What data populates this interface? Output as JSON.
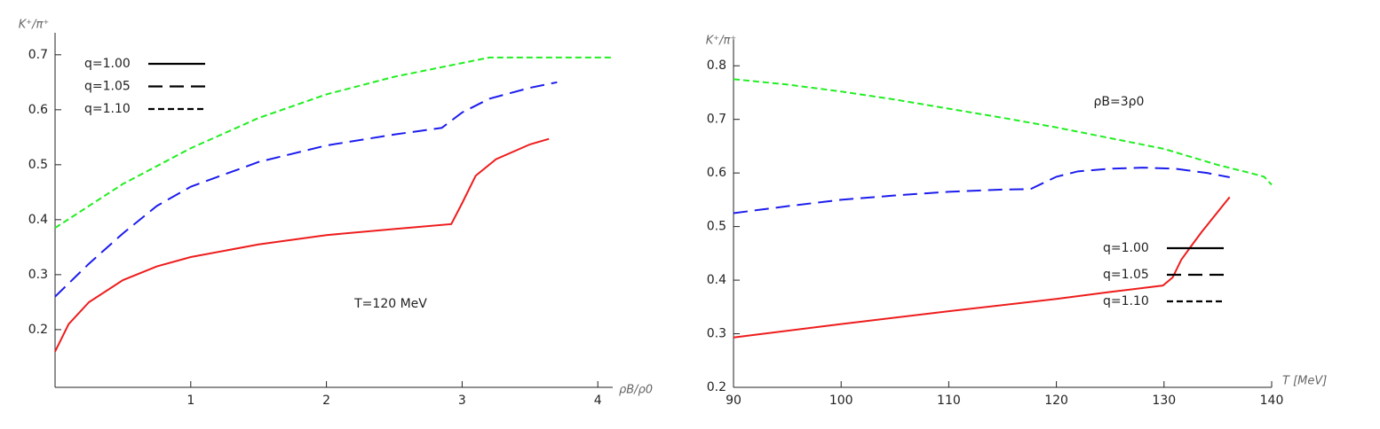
{
  "chart_data": [
    {
      "type": "line",
      "y_label": "K⁺/π⁺",
      "x_label": "ρB/ρ0",
      "annotation": "T=120 MeV",
      "xlim": [
        0,
        4.11
      ],
      "ylim": [
        0.095,
        0.74
      ],
      "xticks": [
        1,
        2,
        3,
        4
      ],
      "yticks": [
        0.2,
        0.3,
        0.4,
        0.5,
        0.6,
        0.7
      ],
      "legend": "upper left",
      "series": [
        {
          "name": "q=1.00",
          "color": "#ee1c1c",
          "x": [
            0,
            0.1,
            0.25,
            0.5,
            0.75,
            1,
            1.5,
            2,
            2.5,
            2.92,
            3.0,
            3.1,
            3.25,
            3.5,
            3.64
          ],
          "values": [
            0.16,
            0.21,
            0.25,
            0.29,
            0.315,
            0.332,
            0.355,
            0.372,
            0.383,
            0.392,
            0.43,
            0.48,
            0.51,
            0.537,
            0.547
          ]
        },
        {
          "name": "q=1.05",
          "color": "#1c1cee",
          "x": [
            0,
            0.25,
            0.5,
            0.75,
            1,
            1.5,
            2,
            2.5,
            2.85,
            3.0,
            3.2,
            3.5,
            3.7
          ],
          "values": [
            0.26,
            0.32,
            0.375,
            0.425,
            0.46,
            0.505,
            0.535,
            0.555,
            0.567,
            0.595,
            0.62,
            0.64,
            0.65
          ]
        },
        {
          "name": "q=1.10",
          "color": "#22ee22",
          "x": [
            0,
            0.5,
            1,
            1.5,
            2,
            2.5,
            3,
            3.2,
            4.1
          ],
          "values": [
            0.385,
            0.465,
            0.53,
            0.585,
            0.628,
            0.66,
            0.685,
            0.695,
            0.695
          ]
        }
      ]
    },
    {
      "type": "line",
      "y_label": "K⁺/π⁺",
      "x_label": "T [MeV]",
      "annotation": "ρB=3ρ0",
      "xlim": [
        90,
        140
      ],
      "ylim": [
        0.2,
        0.85
      ],
      "xticks": [
        90,
        100,
        110,
        120,
        130,
        140
      ],
      "yticks": [
        0.2,
        0.3,
        0.4,
        0.5,
        0.6,
        0.7,
        0.8
      ],
      "legend": "center right",
      "series": [
        {
          "name": "q=1.00",
          "color": "#ee1c1c",
          "x": [
            90,
            100,
            110,
            120,
            125,
            129.9,
            130.8,
            131.6,
            132.5,
            133.5,
            134.5,
            135.5,
            136.1
          ],
          "values": [
            0.293,
            0.318,
            0.342,
            0.365,
            0.378,
            0.39,
            0.405,
            0.438,
            0.463,
            0.49,
            0.515,
            0.54,
            0.555
          ]
        },
        {
          "name": "q=1.05",
          "color": "#1c1cee",
          "x": [
            90,
            95,
            100,
            105,
            110,
            115,
            117.6,
            120,
            122,
            125,
            128,
            131,
            134,
            136.1
          ],
          "values": [
            0.525,
            0.538,
            0.55,
            0.558,
            0.565,
            0.569,
            0.57,
            0.593,
            0.603,
            0.608,
            0.61,
            0.608,
            0.6,
            0.592
          ]
        },
        {
          "name": "q=1.10",
          "color": "#22ee22",
          "x": [
            90,
            95,
            100,
            105,
            110,
            115,
            120,
            125,
            130,
            135,
            138,
            139.3,
            140
          ],
          "values": [
            0.775,
            0.765,
            0.752,
            0.737,
            0.72,
            0.703,
            0.685,
            0.665,
            0.645,
            0.615,
            0.6,
            0.593,
            0.578
          ]
        }
      ]
    }
  ]
}
